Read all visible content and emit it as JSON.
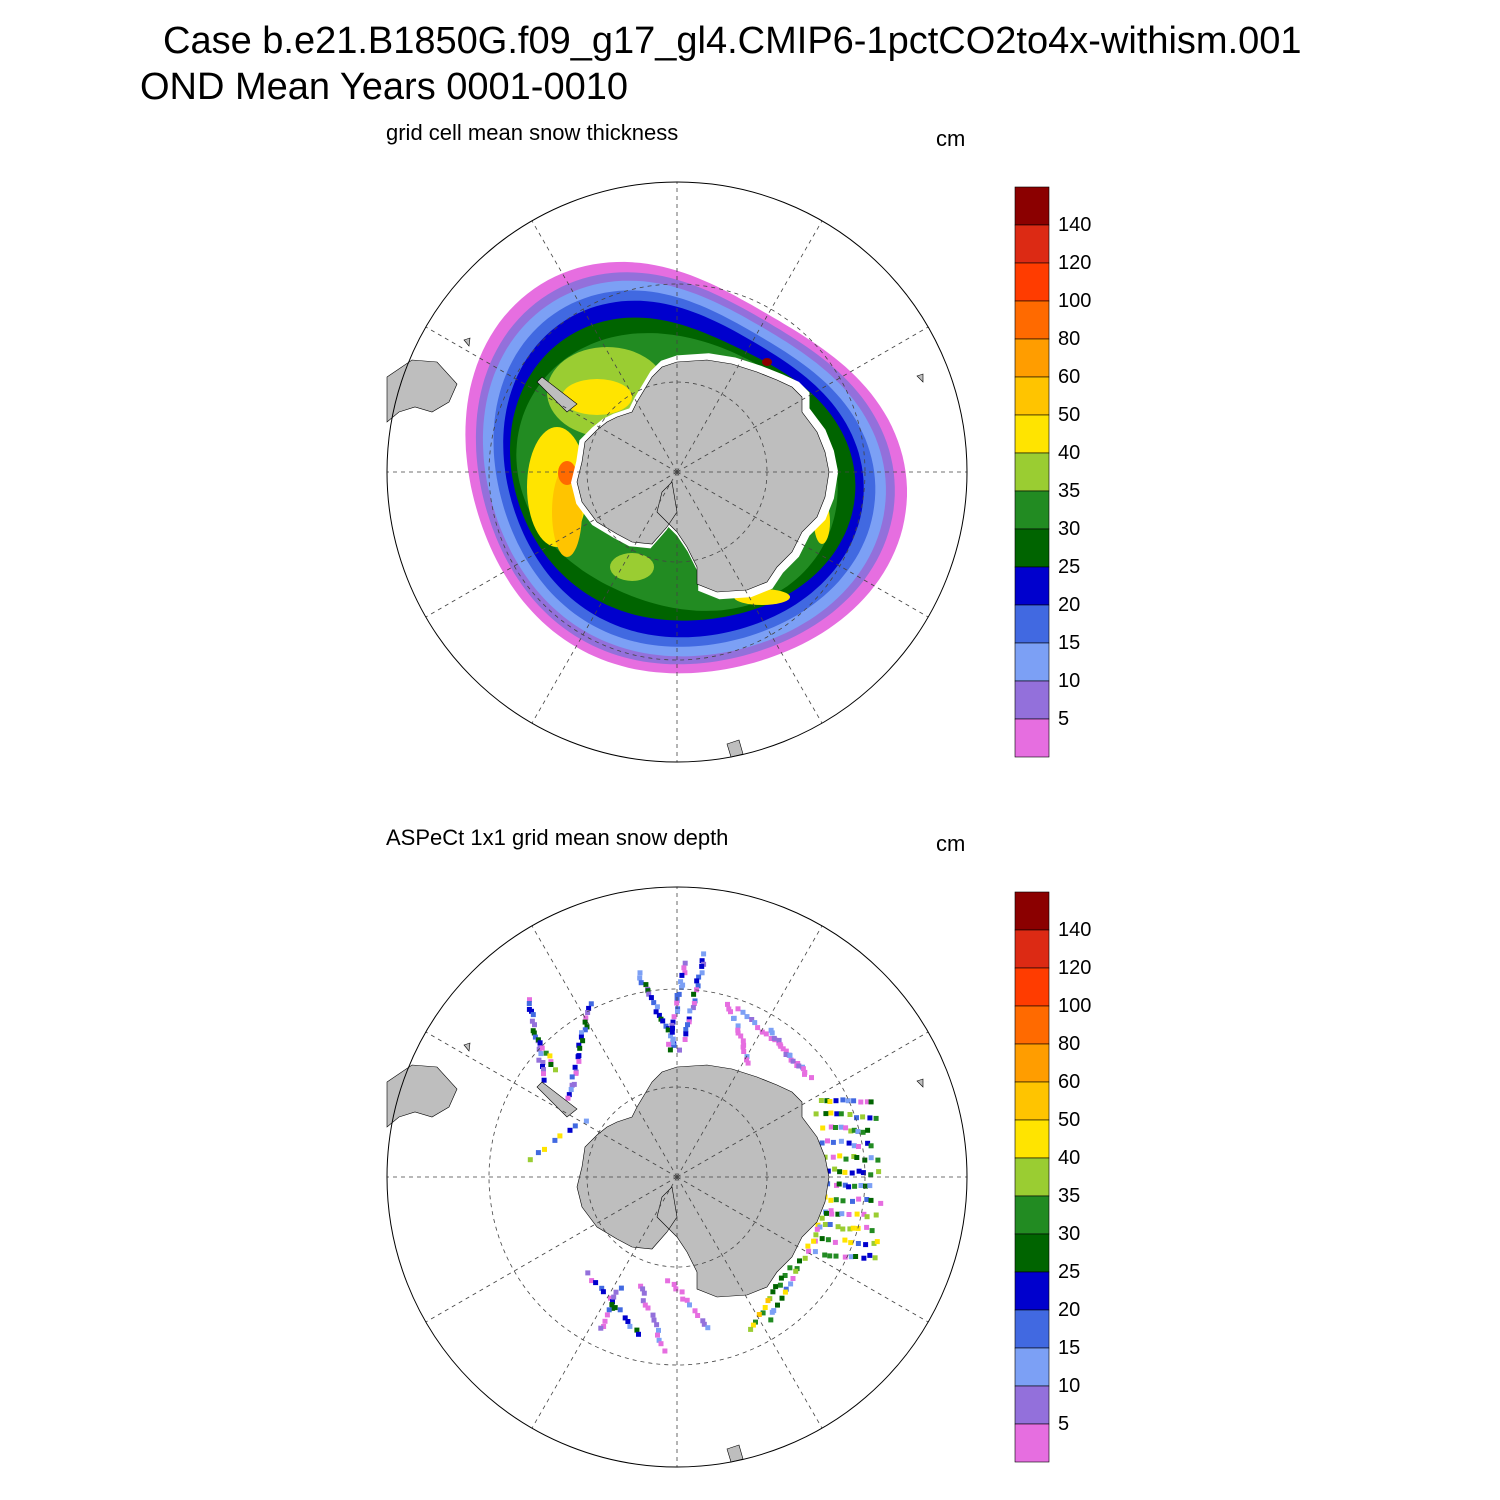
{
  "header": {
    "line1": "Case b.e21.B1850G.f09_g17_gl4.CMIP6-1pctCO2to4x-withism.001",
    "line2": "OND Mean   Years 0001-0010"
  },
  "colors": {
    "land": "#bebebe",
    "levels": [
      "#e66ee0",
      "#9370db",
      "#7ca0f5",
      "#4169e1",
      "#0000cd",
      "#006400",
      "#228b22",
      "#9acd32",
      "#ffe400",
      "#ffc400",
      "#ff9d00",
      "#ff6a00",
      "#ff3c00",
      "#dc2a14",
      "#8b0000"
    ]
  },
  "panels": [
    {
      "id": "model",
      "title": "grid cell mean snow thickness",
      "units": "cm",
      "colorbar_labels": [
        "140",
        "120",
        "100",
        "80",
        "60",
        "50",
        "40",
        "35",
        "30",
        "25",
        "20",
        "15",
        "10",
        "5"
      ]
    },
    {
      "id": "obs",
      "title": "ASPeCt 1x1 grid mean snow depth",
      "units": "cm",
      "colorbar_labels": [
        "140",
        "120",
        "100",
        "80",
        "60",
        "50",
        "40",
        "35",
        "30",
        "25",
        "20",
        "15",
        "10",
        "5"
      ]
    }
  ]
}
